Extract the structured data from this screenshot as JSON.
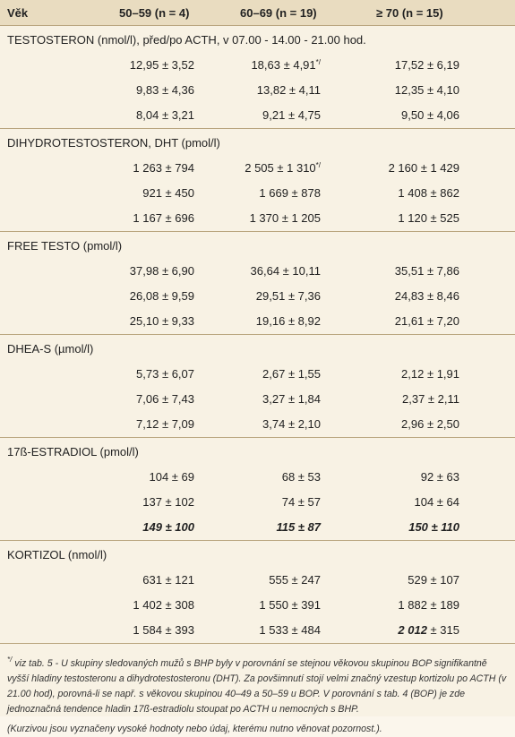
{
  "header": [
    "Věk",
    "50–59 (n = 4)",
    "60–69 (n = 19)",
    "≥ 70 (n = 15)"
  ],
  "sections": [
    {
      "title": "TESTOSTERON (nmol/l), před/po ACTH, v 07.00 - 14.00 - 21.00 hod.",
      "rows": [
        [
          "12,95 ± 3,52",
          {
            "text": "18,63 ± 4,91",
            "sup": "*/"
          },
          "17,52 ± 6,19"
        ],
        [
          "9,83 ± 4,36",
          "13,82 ± 4,11",
          "12,35 ± 4,10"
        ],
        [
          "8,04 ± 3,21",
          "9,21 ± 4,75",
          "9,50 ± 4,06"
        ]
      ]
    },
    {
      "title": "DIHYDROTESTOSTERON, DHT (pmol/l)",
      "rows": [
        [
          "1 263 ± 794",
          {
            "text": "2 505 ± 1 310",
            "sup": "*/"
          },
          "2 160 ± 1 429"
        ],
        [
          "921 ± 450",
          "1 669 ± 878",
          "1 408 ± 862"
        ],
        [
          "1 167 ± 696",
          "1 370 ± 1 205",
          "1 120 ± 525"
        ]
      ]
    },
    {
      "title": "FREE TESTO (pmol/l)",
      "rows": [
        [
          "37,98 ± 6,90",
          "36,64 ± 10,11",
          "35,51 ± 7,86"
        ],
        [
          "26,08 ± 9,59",
          "29,51 ± 7,36",
          "24,83 ± 8,46"
        ],
        [
          "25,10 ± 9,33",
          "19,16 ± 8,92",
          "21,61 ± 7,20"
        ]
      ]
    },
    {
      "title": "DHEA-S  (µmol/l)",
      "rows": [
        [
          "5,73 ± 6,07",
          "2,67 ± 1,55",
          "2,12 ± 1,91"
        ],
        [
          "7,06 ± 7,43",
          "3,27 ± 1,84",
          "2,37 ± 2,11"
        ],
        [
          "7,12 ± 7,09",
          "3,74 ± 2,10",
          "2,96 ± 2,50"
        ]
      ]
    },
    {
      "title": "17ß-ESTRADIOL (pmol/l)",
      "rows": [
        [
          "104 ± 69",
          "68 ± 53",
          "92 ± 63"
        ],
        [
          "137 ± 102",
          "74 ± 57",
          "104 ± 64"
        ],
        [
          {
            "em": "149 ± 100"
          },
          {
            "em": "115 ± 87"
          },
          {
            "em": "150 ± 110"
          }
        ]
      ]
    },
    {
      "title": "KORTIZOL (nmol/l)",
      "rows": [
        [
          "631 ± 121",
          "555 ± 247",
          "529 ± 107"
        ],
        [
          "1 402 ± 308",
          "1 550 ± 391",
          "1 882 ± 189"
        ],
        [
          "1 584 ± 393",
          "1 533 ± 484",
          {
            "em": "2 012",
            "text": " ± 315"
          }
        ]
      ]
    }
  ],
  "footnote": {
    "sup": "*/",
    "text": " viz tab. 5 - U skupiny sledovaných mužů s BHP byly v porovnání se stejnou věkovou skupinou BOP signifikantně vyšší hladiny testosteronu a dihydrotestosteronu (DHT). Za povšimnutí stojí velmi značný vzestup kortizolu po ACTH (v 21.00 hod), porovná-li se např. s věkovou skupinou 40–49 a 50–59 u BOP. V porovnání s tab. 4 (BOP) je zde jednoznačná tendence hladin 17ß-estradiolu stoupat po ACTH u nemocných s BHP.",
    "note": "(Kurzivou jsou vyznačeny vysoké hodnoty nebo údaj, kterému nutno věnovat pozornost.)."
  }
}
